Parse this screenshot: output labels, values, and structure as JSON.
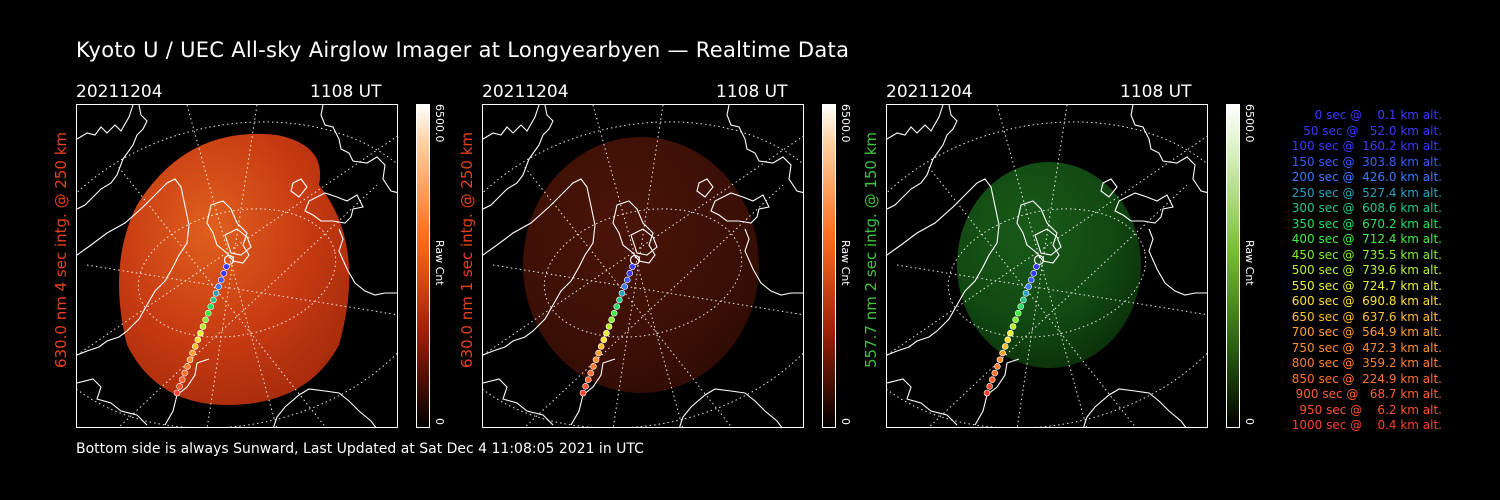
{
  "title": "Kyoto U / UEC All-sky Airglow Imager at Longyearbyen — Realtime Data",
  "footer": "Bottom side is always Sunward, Last Updated at Sat Dec  4 11:08:05 2021 in UTC",
  "panels": [
    {
      "date": "20211204",
      "time": "1108 UT",
      "side_label": "630.0 nm 4 sec intg. @ 250 km",
      "side_color": "#e8401e",
      "cbar_max": "6500.0",
      "cbar_min": "0",
      "cbar_unit": "Raw Cnt",
      "colormap": "red",
      "glow_level": "bright"
    },
    {
      "date": "20211204",
      "time": "1108 UT",
      "side_label": "630.0 nm 1 sec intg. @ 250 km",
      "side_color": "#e8401e",
      "cbar_max": "6500.0",
      "cbar_min": "0",
      "cbar_unit": "Raw Cnt",
      "colormap": "red",
      "glow_level": "dim"
    },
    {
      "date": "20211204",
      "time": "1108 UT",
      "side_label": "557.7 nm 2 sec intg. @ 150 km",
      "side_color": "#3ec43e",
      "cbar_max": "6500.0",
      "cbar_min": "0",
      "cbar_unit": "Raw Cnt",
      "colormap": "green",
      "glow_level": "dim"
    }
  ],
  "legend": [
    {
      "text": "   0 sec @    0.1 km alt.",
      "color": "#3a3aff"
    },
    {
      "text": "  50 sec @   52.0 km alt.",
      "color": "#3a3aff"
    },
    {
      "text": " 100 sec @  160.2 km alt.",
      "color": "#3a3aff"
    },
    {
      "text": " 150 sec @  303.8 km alt.",
      "color": "#3a5cff"
    },
    {
      "text": " 200 sec @  426.0 km alt.",
      "color": "#3a7aff"
    },
    {
      "text": " 250 sec @  527.4 km alt.",
      "color": "#2aa0c0"
    },
    {
      "text": " 300 sec @  608.6 km alt.",
      "color": "#22c88a"
    },
    {
      "text": " 350 sec @  670.2 km alt.",
      "color": "#22e060"
    },
    {
      "text": " 400 sec @  712.4 km alt.",
      "color": "#40f040"
    },
    {
      "text": " 450 sec @  735.5 km alt.",
      "color": "#80f030"
    },
    {
      "text": " 500 sec @  739.6 km alt.",
      "color": "#b8f030"
    },
    {
      "text": " 550 sec @  724.7 km alt.",
      "color": "#e8f030"
    },
    {
      "text": " 600 sec @  690.8 km alt.",
      "color": "#ffe030"
    },
    {
      "text": " 650 sec @  637.6 km alt.",
      "color": "#ffc030"
    },
    {
      "text": " 700 sec @  564.9 km alt.",
      "color": "#ffa030"
    },
    {
      "text": " 750 sec @  472.3 km alt.",
      "color": "#ff9030"
    },
    {
      "text": " 800 sec @  359.2 km alt.",
      "color": "#ff8030"
    },
    {
      "text": " 850 sec @  224.9 km alt.",
      "color": "#ff7030"
    },
    {
      "text": " 900 sec @   68.7 km alt.",
      "color": "#ff6030"
    },
    {
      "text": " 950 sec @    6.2 km alt.",
      "color": "#ff5030"
    },
    {
      "text": "1000 sec @    0.4 km alt.",
      "color": "#ff4030"
    }
  ]
}
